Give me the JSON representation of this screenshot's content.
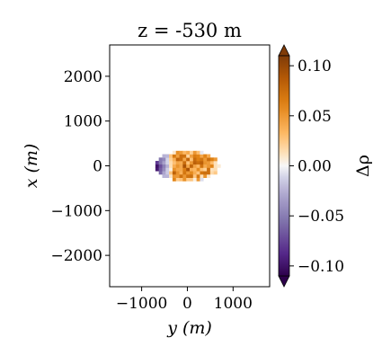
{
  "chart_data": {
    "type": "heatmap",
    "title": "z = -530 m",
    "xlabel": "y (m)",
    "ylabel": "x (m)",
    "xlim": [
      -1700,
      1800
    ],
    "ylim": [
      -2700,
      2700
    ],
    "xticks": [
      {
        "value": -1000,
        "label": "−1000"
      },
      {
        "value": 0,
        "label": "0"
      },
      {
        "value": 1000,
        "label": "1000"
      }
    ],
    "yticks": [
      {
        "value": 2000,
        "label": "2000"
      },
      {
        "value": 1000,
        "label": "1000"
      },
      {
        "value": 0,
        "label": "0"
      },
      {
        "value": -1000,
        "label": "−1000"
      },
      {
        "value": -2000,
        "label": "−2000"
      }
    ],
    "colorbar": {
      "label": "Δρ",
      "range": [
        -0.11,
        0.11
      ],
      "colormap": "PuOr_r",
      "extend": "both",
      "ticks": [
        {
          "value": 0.1,
          "label": "0.10"
        },
        {
          "value": 0.05,
          "label": "0.05"
        },
        {
          "value": 0,
          "label": "0.00"
        },
        {
          "value": -0.05,
          "label": "−0.05"
        },
        {
          "value": -0.1,
          "label": "−0.10"
        }
      ]
    },
    "cell_size": 75,
    "anomaly": {
      "center_y": 0,
      "center_x": 0,
      "radius_y": 700,
      "radius_x": 340,
      "value_range": [
        -0.1,
        0.1
      ]
    }
  }
}
